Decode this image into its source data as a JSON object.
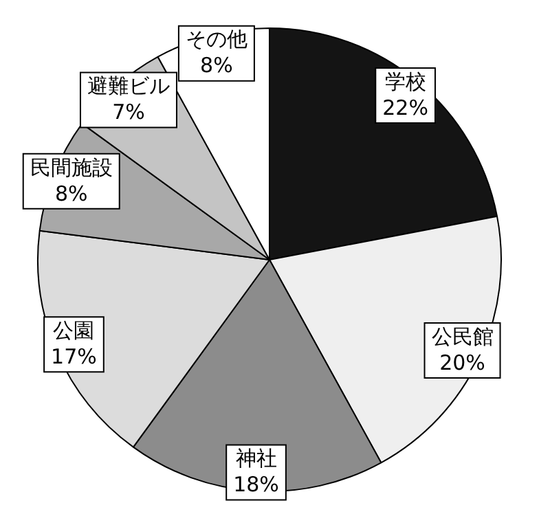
{
  "chart_data": {
    "type": "pie",
    "categories": [
      "学校",
      "公民館",
      "神社",
      "公園",
      "民間施設",
      "避難ビル",
      "その他"
    ],
    "values": [
      22,
      20,
      18,
      17,
      8,
      7,
      8
    ],
    "value_labels": [
      "22%",
      "20%",
      "18%",
      "17%",
      "8%",
      "7%",
      "8%"
    ],
    "colors": [
      "#141414",
      "#efefef",
      "#8c8c8c",
      "#dcdcdc",
      "#a8a8a8",
      "#c4c4c4",
      "#ffffff"
    ]
  }
}
